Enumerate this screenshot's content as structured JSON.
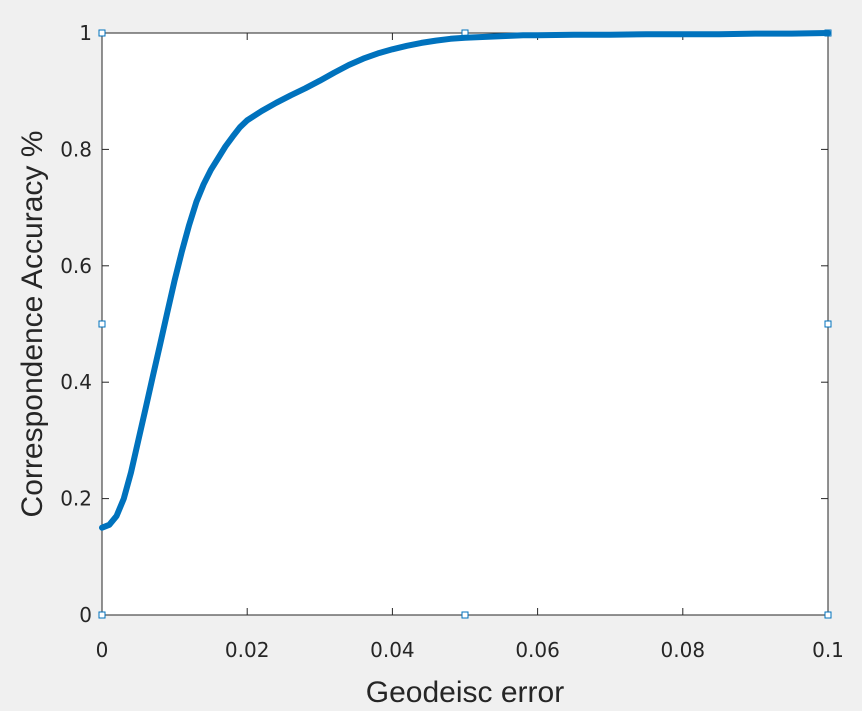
{
  "chart_data": {
    "type": "line",
    "title": "",
    "xlabel": "Geodeisc error",
    "ylabel": "Correspondence Accuracy %",
    "xlim": [
      0,
      0.1
    ],
    "ylim": [
      0,
      1
    ],
    "grid": false,
    "xticks": [
      0,
      0.02,
      0.04,
      0.06,
      0.08,
      0.1
    ],
    "xtick_labels": [
      "0",
      "0.02",
      "0.04",
      "0.06",
      "0.08",
      "0.1"
    ],
    "yticks": [
      0,
      0.2,
      0.4,
      0.6,
      0.8,
      1
    ],
    "ytick_labels": [
      "0",
      "0.2",
      "0.4",
      "0.6",
      "0.8",
      "1"
    ],
    "colors": {
      "line": "#0072bd",
      "axes": "#262626",
      "background": "#f0f0f0",
      "plot_bg": "#ffffff"
    },
    "series": [
      {
        "x": [
          0,
          0.001,
          0.002,
          0.003,
          0.004,
          0.005,
          0.006,
          0.007,
          0.008,
          0.009,
          0.01,
          0.011,
          0.012,
          0.013,
          0.014,
          0.015,
          0.016,
          0.017,
          0.018,
          0.019,
          0.02,
          0.022,
          0.024,
          0.026,
          0.028,
          0.03,
          0.032,
          0.034,
          0.036,
          0.038,
          0.04,
          0.042,
          0.044,
          0.046,
          0.048,
          0.05,
          0.052,
          0.054,
          0.056,
          0.058,
          0.06,
          0.065,
          0.07,
          0.075,
          0.08,
          0.085,
          0.09,
          0.095,
          0.1
        ],
        "y": [
          0.15,
          0.155,
          0.17,
          0.2,
          0.245,
          0.3,
          0.355,
          0.41,
          0.465,
          0.52,
          0.575,
          0.625,
          0.67,
          0.71,
          0.74,
          0.765,
          0.785,
          0.805,
          0.822,
          0.838,
          0.85,
          0.866,
          0.88,
          0.893,
          0.905,
          0.918,
          0.932,
          0.945,
          0.956,
          0.965,
          0.972,
          0.978,
          0.983,
          0.987,
          0.99,
          0.992,
          0.993,
          0.994,
          0.995,
          0.996,
          0.996,
          0.997,
          0.997,
          0.998,
          0.998,
          0.998,
          0.999,
          0.999,
          1.0
        ]
      }
    ]
  }
}
